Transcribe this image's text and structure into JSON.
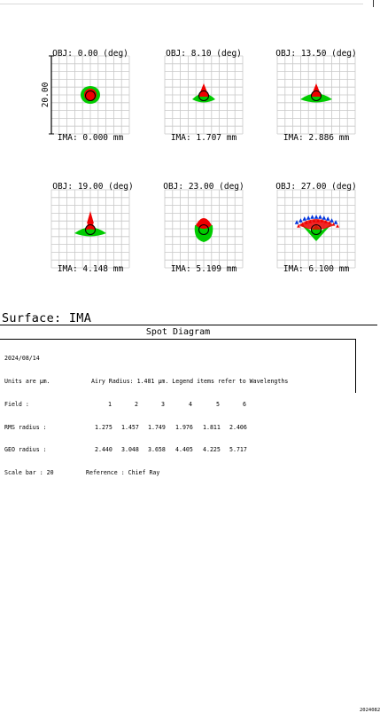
{
  "spot_diagram": {
    "scale_axis_label": "20.00",
    "fields": [
      {
        "obj": "OBJ: 0.00 (deg)",
        "ima": "IMA: 0.000 mm",
        "spot": {
          "shift": 0.0,
          "shape": "round",
          "rays": "none"
        }
      },
      {
        "obj": "OBJ: 8.10 (deg)",
        "ima": "IMA: 1.707 mm",
        "spot": {
          "shift": 0.15,
          "shape": "flared",
          "rays": "cone"
        }
      },
      {
        "obj": "OBJ: 13.50 (deg)",
        "ima": "IMA: 2.886 mm",
        "spot": {
          "shift": 0.2,
          "shape": "wide",
          "rays": "small-cone"
        }
      },
      {
        "obj": "OBJ: 19.00 (deg)",
        "ima": "IMA: 4.148 mm",
        "spot": {
          "shift": 0.35,
          "shape": "wide",
          "rays": "spike"
        }
      },
      {
        "obj": "OBJ: 23.00 (deg)",
        "ima": "IMA: 5.109 mm",
        "spot": {
          "shift": 0.45,
          "shape": "tall",
          "rays": "fan"
        }
      },
      {
        "obj": "OBJ: 27.00 (deg)",
        "ima": "IMA: 6.100 mm",
        "spot": {
          "shift": 0.5,
          "shape": "star",
          "rays": "arc"
        }
      }
    ],
    "colors": {
      "wavelength_1": "#0033dd",
      "wavelength_2": "#00cc00",
      "wavelength_3": "#ee0000",
      "grid": "#c8c8c8",
      "airy": "#000000"
    }
  },
  "surface": {
    "title": "Surface: IMA"
  },
  "info": {
    "title": "Spot Diagram",
    "date": "2024/08/14",
    "units": "Units are µm.",
    "airy": "Airy Radius: 1.481 µm. Legend items refer to Wavelengths",
    "field_label": "Field      :",
    "field_values": [
      "1",
      "2",
      "3",
      "4",
      "5",
      "6"
    ],
    "rms_label": "RMS radius :",
    "rms_values": [
      "1.275",
      "1.457",
      "1.749",
      "1.976",
      "1.811",
      "2.406"
    ],
    "geo_label": "GEO radius :",
    "geo_values": [
      "2.440",
      "3.048",
      "3.658",
      "4.405",
      "4.225",
      "5.717"
    ],
    "scale_label": "Scale bar  : 20",
    "reference": "Reference  : Chief Ray",
    "stamp": "2024082"
  }
}
